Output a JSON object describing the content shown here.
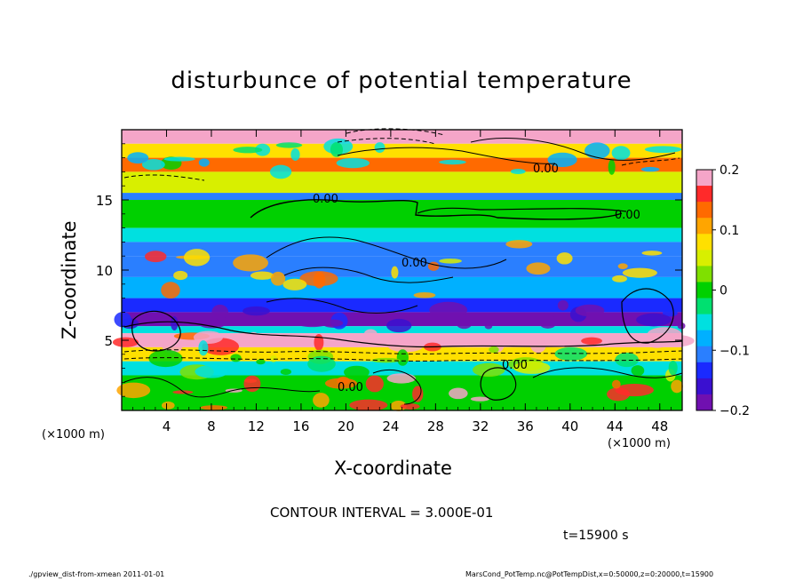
{
  "chart_data": {
    "type": "heatmap",
    "title": "disturbunce of potential temperature",
    "xlabel": "X-coordinate",
    "ylabel": "Z-coordinate",
    "x_unit_label": "(×1000 m)",
    "y_unit_label": "(×1000 m)",
    "xlim": [
      0,
      50
    ],
    "ylim": [
      0,
      20
    ],
    "x_ticks": [
      4,
      8,
      12,
      16,
      20,
      24,
      28,
      32,
      36,
      40,
      44,
      48
    ],
    "y_ticks": [
      5,
      10,
      15
    ],
    "colorbar": {
      "range": [
        -0.2,
        0.2
      ],
      "labels": [
        {
          "value": 0.2,
          "text": "0.2"
        },
        {
          "value": 0.1,
          "text": "0.1"
        },
        {
          "value": 0,
          "text": "0"
        },
        {
          "value": -0.1,
          "text": "−0.1"
        },
        {
          "value": -0.2,
          "text": "−0.2"
        }
      ],
      "colors": [
        "#f5a5c8",
        "#ff2a2a",
        "#ff6a00",
        "#ffa500",
        "#ffe000",
        "#d8ef00",
        "#7fe000",
        "#00d000",
        "#00e070",
        "#00e0e0",
        "#00b0ff",
        "#2a7fff",
        "#1a2aff",
        "#3a10d0",
        "#7010b0"
      ]
    },
    "contour_labels": [
      "0.00",
      "0.00",
      "0.00",
      "0.00",
      "0.00",
      "0.00"
    ],
    "bands": [
      {
        "z": [
          19.0,
          20.0
        ],
        "value": 0.2
      },
      {
        "z": [
          18.0,
          19.0
        ],
        "value": 0.1
      },
      {
        "z": [
          17.0,
          18.0
        ],
        "value": 0.15
      },
      {
        "z": [
          15.5,
          17.0
        ],
        "value": 0.05
      },
      {
        "z": [
          15.0,
          15.5
        ],
        "value": -0.1
      },
      {
        "z": [
          13.0,
          15.0
        ],
        "value": 0.0
      },
      {
        "z": [
          12.0,
          13.0
        ],
        "value": -0.05
      },
      {
        "z": [
          11.0,
          12.0
        ],
        "value": -0.1
      },
      {
        "z": [
          9.5,
          11.0
        ],
        "value": -0.12
      },
      {
        "z": [
          8.0,
          9.5
        ],
        "value": -0.08
      },
      {
        "z": [
          7.0,
          8.0
        ],
        "value": -0.15
      },
      {
        "z": [
          6.0,
          7.0
        ],
        "value": -0.19
      },
      {
        "z": [
          5.5,
          6.0
        ],
        "value": -0.05
      },
      {
        "z": [
          4.5,
          5.5
        ],
        "value": 0.2
      },
      {
        "z": [
          3.5,
          4.5
        ],
        "value": 0.1
      },
      {
        "z": [
          2.5,
          3.5
        ],
        "value": -0.05
      },
      {
        "z": [
          0,
          2.5
        ],
        "value": 0.0
      }
    ]
  },
  "annotations": {
    "contour_interval": "CONTOUR INTERVAL = 3.000E-01",
    "time": "t=15900 s"
  },
  "footer": {
    "left": "./gpview_dist-from-xmean  2011-01-01",
    "right": "MarsCond_PotTemp.nc@PotTempDist,x=0:50000,z=0:20000,t=15900"
  }
}
